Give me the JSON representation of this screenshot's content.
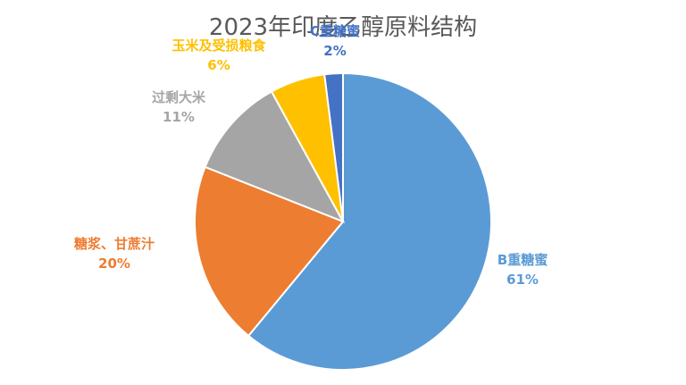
{
  "chart_data": {
    "type": "pie",
    "title": "2023年印度乙醇原料结构",
    "start_angle_deg": 0,
    "direction": "clockwise",
    "slices": [
      {
        "label": "B重糖蜜",
        "value": 61,
        "pct_text": "61%",
        "color": "#5b9bd5"
      },
      {
        "label": "糖浆、甘蔗汁",
        "value": 20,
        "pct_text": "20%",
        "color": "#ed7d31"
      },
      {
        "label": "过剩大米",
        "value": 11,
        "pct_text": "11%",
        "color": "#a5a5a5"
      },
      {
        "label": "玉米及受损粮食",
        "value": 6,
        "pct_text": "6%",
        "color": "#ffc000"
      },
      {
        "label": "C重糖蜜",
        "value": 2,
        "pct_text": "2%",
        "color": "#4472c4"
      }
    ]
  }
}
